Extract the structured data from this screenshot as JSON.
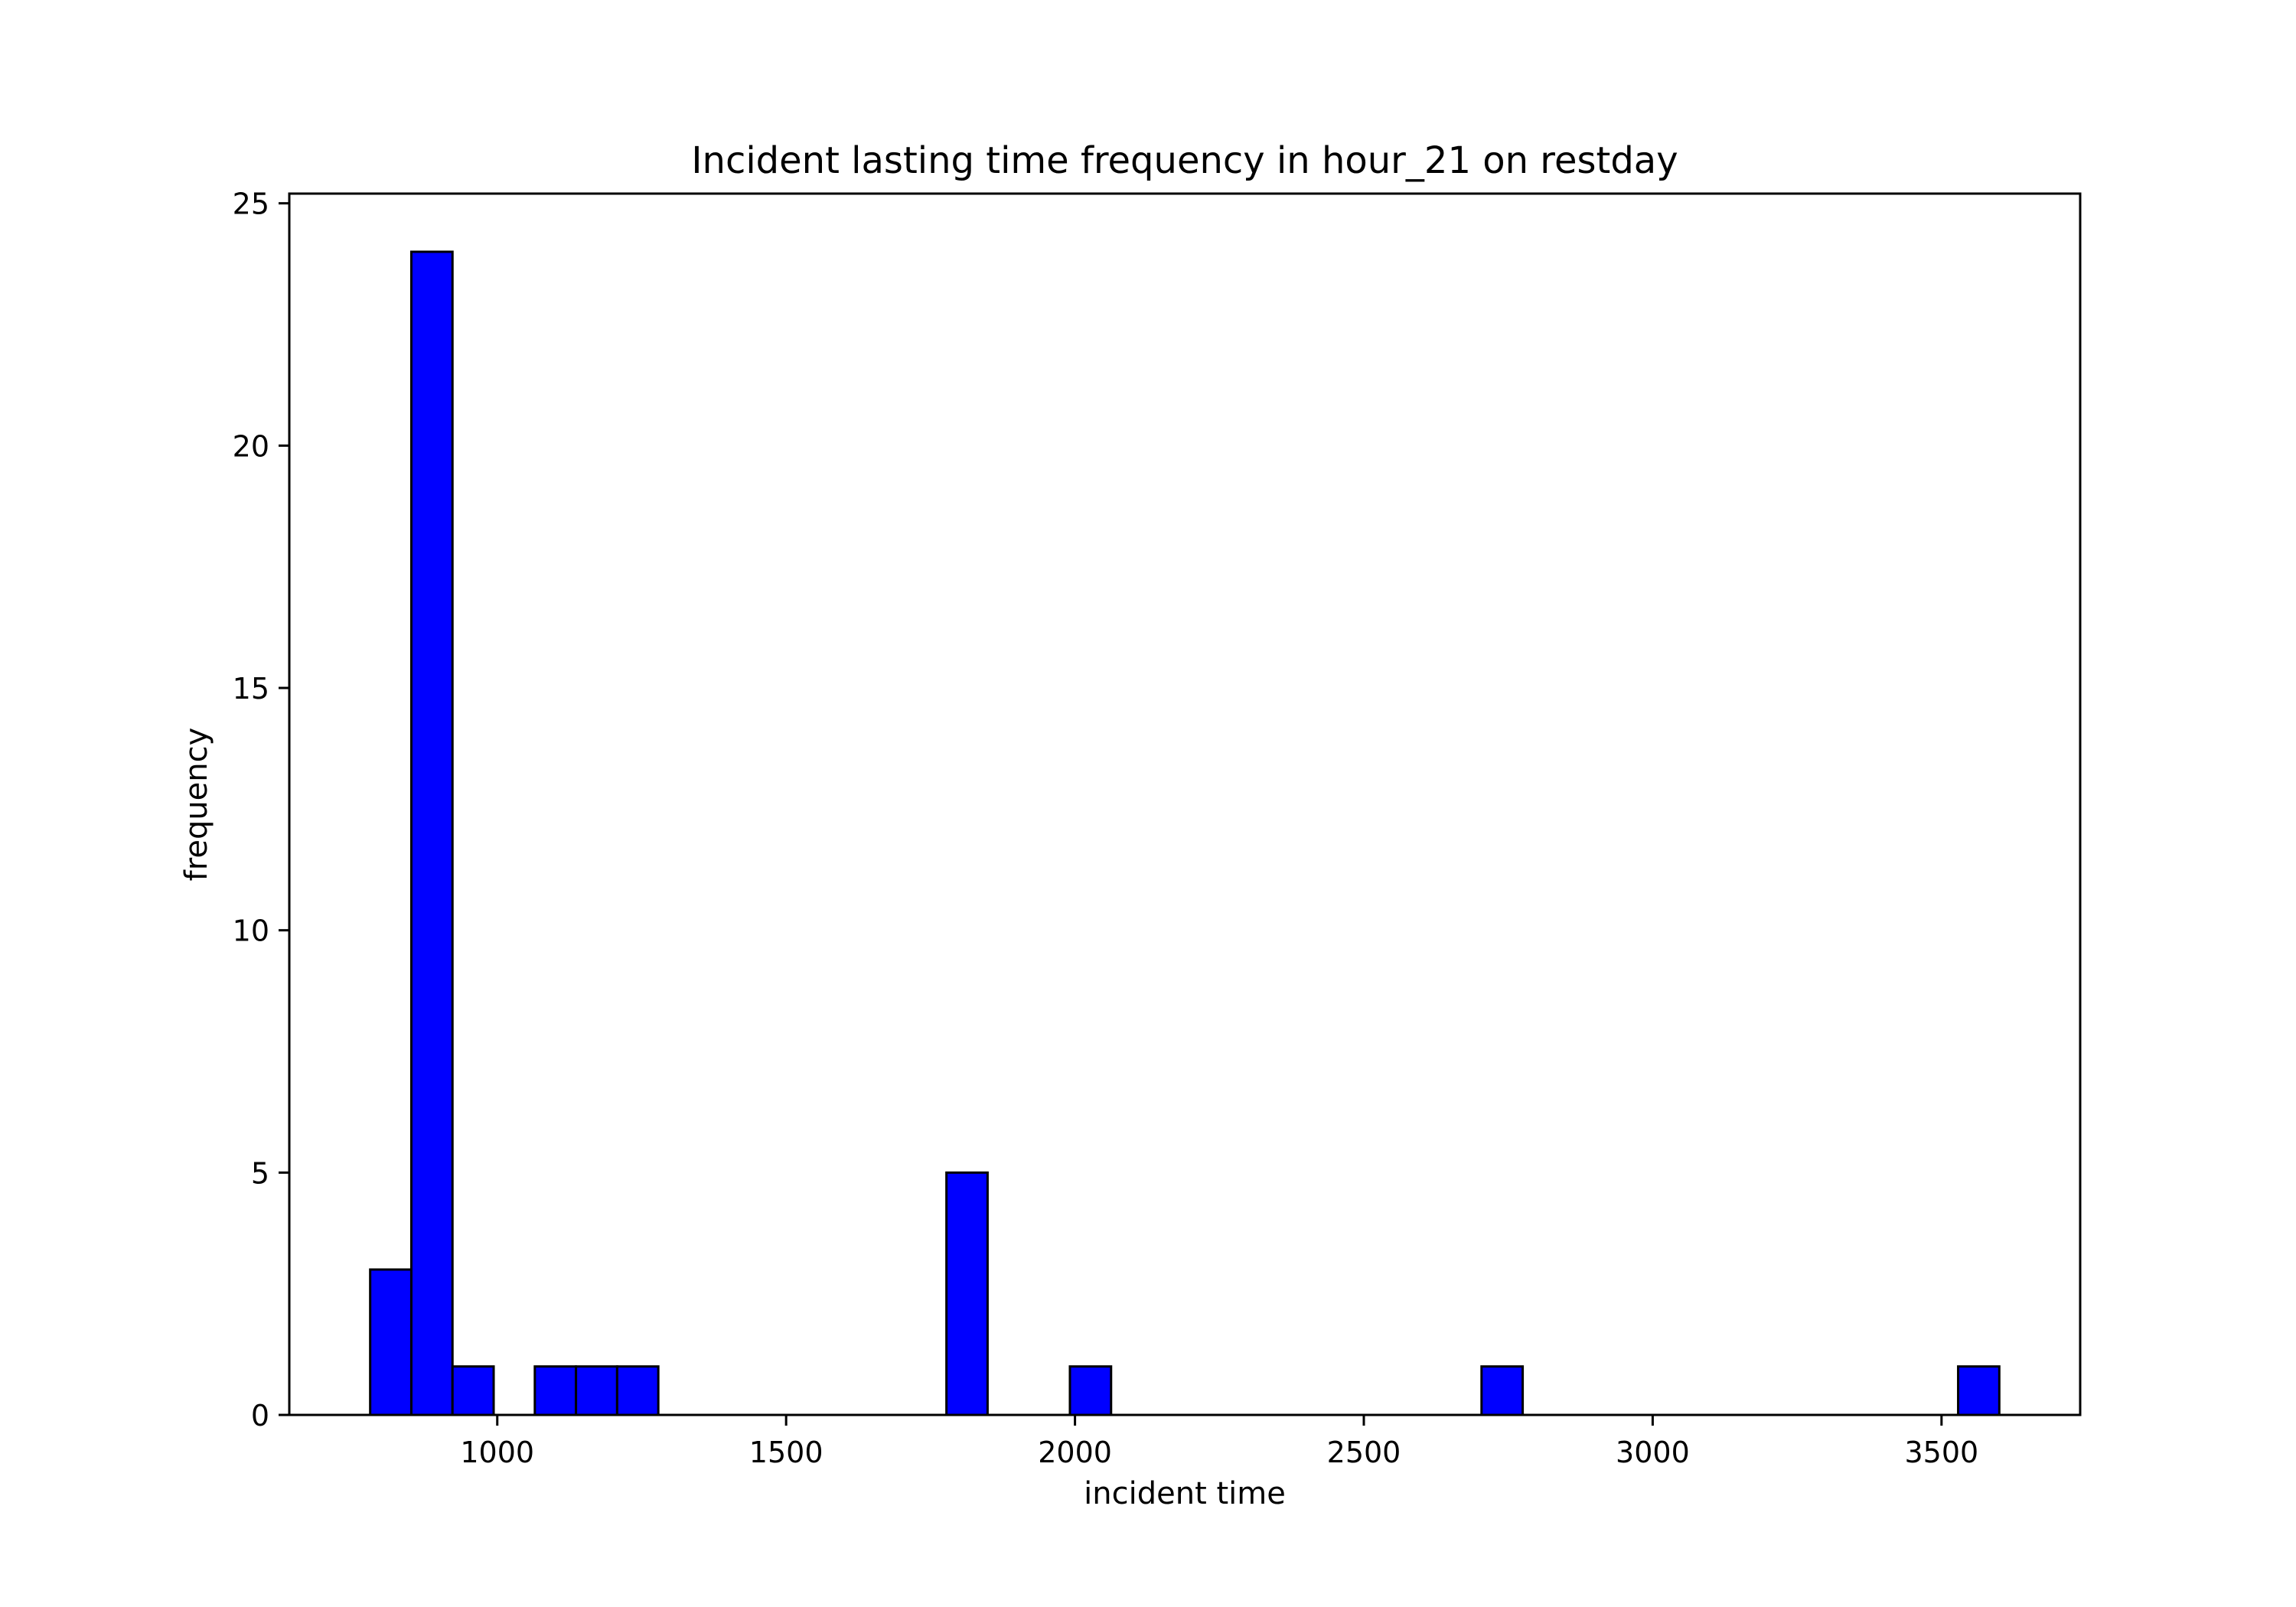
{
  "chart_data": {
    "type": "bar",
    "title": "Incident lasting time frequency in hour_21 on restday",
    "xlabel": "incident time",
    "ylabel": "frequency",
    "xlim": [
      640,
      3740
    ],
    "ylim": [
      0,
      25.2
    ],
    "grid": false,
    "bin_width": 71.25,
    "bin_start": 780,
    "num_bins": 40,
    "bins": [
      {
        "x0": 780,
        "x1": 851.25,
        "value": 3
      },
      {
        "x0": 851.25,
        "x1": 922.5,
        "value": 24
      },
      {
        "x0": 922.5,
        "x1": 993.75,
        "value": 1
      },
      {
        "x0": 1065,
        "x1": 1136.25,
        "value": 1
      },
      {
        "x0": 1136.25,
        "x1": 1207.5,
        "value": 1
      },
      {
        "x0": 1207.5,
        "x1": 1278.75,
        "value": 1
      },
      {
        "x0": 1777.5,
        "x1": 1848.75,
        "value": 5
      },
      {
        "x0": 1991.25,
        "x1": 2062.5,
        "value": 1
      },
      {
        "x0": 2703.75,
        "x1": 2775,
        "value": 1
      },
      {
        "x0": 3528.75,
        "x1": 3600,
        "value": 1
      }
    ],
    "x_ticks": [
      "1000",
      "1500",
      "2000",
      "2500",
      "3000",
      "3500"
    ],
    "y_ticks": [
      "0",
      "5",
      "10",
      "15",
      "20",
      "25"
    ],
    "colors": {
      "bar_fill": "#0000ff",
      "bar_edge": "#000000",
      "axes": "#000000",
      "background": "#ffffff"
    }
  }
}
